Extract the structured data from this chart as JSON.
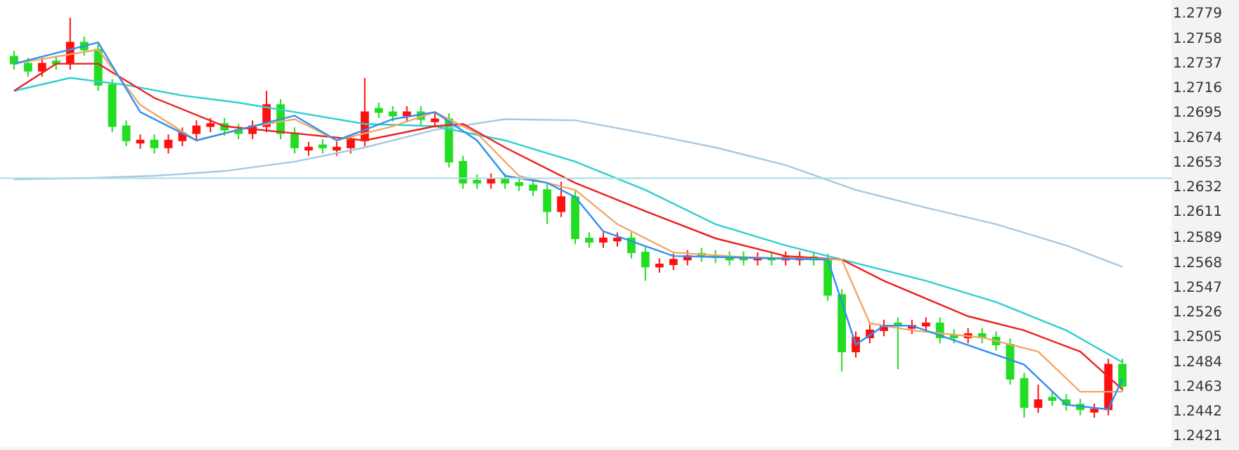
{
  "chart_data": {
    "type": "candlestick",
    "categories": [
      null,
      null,
      null,
      null,
      null,
      null,
      null,
      null,
      null,
      null,
      null,
      null,
      null,
      null,
      null,
      null,
      null,
      null,
      null,
      null,
      null,
      null,
      null,
      null,
      null,
      null,
      null,
      null,
      null,
      null,
      null,
      null,
      null,
      null,
      null,
      null,
      null,
      null,
      null,
      null,
      null,
      null,
      null,
      null,
      null,
      null,
      null,
      null,
      null,
      null,
      null,
      null,
      null,
      null,
      null,
      null,
      null,
      null,
      null,
      null,
      null,
      null,
      null,
      null,
      null,
      null,
      null,
      null,
      null,
      null,
      null,
      null,
      null,
      null,
      null,
      null,
      null,
      null,
      null,
      null
    ],
    "ohlc": [
      [
        1.2742,
        1.2747,
        1.2731,
        1.2736
      ],
      [
        1.2736,
        1.2741,
        1.2725,
        1.273
      ],
      [
        1.273,
        1.2741,
        1.2725,
        1.2736
      ],
      [
        1.2738,
        1.2743,
        1.2731,
        1.2736
      ],
      [
        1.2736,
        1.2775,
        1.2731,
        1.2754
      ],
      [
        1.2754,
        1.2759,
        1.2743,
        1.2748
      ],
      [
        1.2748,
        1.2753,
        1.2713,
        1.2718
      ],
      [
        1.2718,
        1.2723,
        1.2678,
        1.2683
      ],
      [
        1.2683,
        1.2688,
        1.2666,
        1.2671
      ],
      [
        1.2669,
        1.2676,
        1.2664,
        1.2671
      ],
      [
        1.2671,
        1.2676,
        1.266,
        1.2665
      ],
      [
        1.2665,
        1.2676,
        1.266,
        1.2671
      ],
      [
        1.2671,
        1.2682,
        1.2666,
        1.2677
      ],
      [
        1.2677,
        1.2688,
        1.2672,
        1.2683
      ],
      [
        1.2683,
        1.269,
        1.2678,
        1.2685
      ],
      [
        1.2685,
        1.269,
        1.2675,
        1.268
      ],
      [
        1.268,
        1.2685,
        1.2672,
        1.2677
      ],
      [
        1.2677,
        1.2688,
        1.2672,
        1.2683
      ],
      [
        1.2683,
        1.2713,
        1.2678,
        1.2701
      ],
      [
        1.2701,
        1.2706,
        1.2672,
        1.2677
      ],
      [
        1.2677,
        1.2682,
        1.266,
        1.2665
      ],
      [
        1.2663,
        1.267,
        1.2658,
        1.2665
      ],
      [
        1.2667,
        1.2672,
        1.266,
        1.2665
      ],
      [
        1.2663,
        1.267,
        1.2658,
        1.2665
      ],
      [
        1.2665,
        1.2676,
        1.266,
        1.2671
      ],
      [
        1.2671,
        1.2724,
        1.2666,
        1.2695
      ],
      [
        1.2698,
        1.2703,
        1.269,
        1.2695
      ],
      [
        1.2695,
        1.27,
        1.2687,
        1.2692
      ],
      [
        1.2692,
        1.27,
        1.2687,
        1.2695
      ],
      [
        1.2695,
        1.27,
        1.2684,
        1.2689
      ],
      [
        1.2687,
        1.2694,
        1.2682,
        1.2689
      ],
      [
        1.2689,
        1.2694,
        1.2648,
        1.2653
      ],
      [
        1.2653,
        1.2658,
        1.263,
        1.2635
      ],
      [
        1.2637,
        1.2642,
        1.263,
        1.2635
      ],
      [
        1.2635,
        1.2643,
        1.263,
        1.2638
      ],
      [
        1.2638,
        1.2643,
        1.263,
        1.2635
      ],
      [
        1.2635,
        1.264,
        1.2628,
        1.2633
      ],
      [
        1.2633,
        1.2638,
        1.2624,
        1.2629
      ],
      [
        1.2629,
        1.2634,
        1.26,
        1.2611
      ],
      [
        1.2611,
        1.2636,
        1.2606,
        1.2623
      ],
      [
        1.2623,
        1.2628,
        1.2583,
        1.2588
      ],
      [
        1.2588,
        1.2593,
        1.258,
        1.2585
      ],
      [
        1.2585,
        1.2593,
        1.258,
        1.2588
      ],
      [
        1.2586,
        1.2593,
        1.2581,
        1.2588
      ],
      [
        1.2588,
        1.2593,
        1.2571,
        1.2576
      ],
      [
        1.2576,
        1.2581,
        1.2552,
        1.2564
      ],
      [
        1.2564,
        1.2571,
        1.2559,
        1.2566
      ],
      [
        1.2566,
        1.2575,
        1.2561,
        1.257
      ],
      [
        1.257,
        1.2578,
        1.2565,
        1.2573
      ],
      [
        1.2575,
        1.258,
        1.2568,
        1.2573
      ],
      [
        1.2573,
        1.2578,
        1.2567,
        1.2572
      ],
      [
        1.2572,
        1.2577,
        1.2565,
        1.257
      ],
      [
        1.2572,
        1.2577,
        1.2565,
        1.257
      ],
      [
        1.257,
        1.2576,
        1.2565,
        1.2571
      ],
      [
        1.2571,
        1.2576,
        1.2565,
        1.257
      ],
      [
        1.257,
        1.2577,
        1.2565,
        1.2572
      ],
      [
        1.257,
        1.2577,
        1.2565,
        1.2572
      ],
      [
        1.2572,
        1.2577,
        1.2565,
        1.257
      ],
      [
        1.257,
        1.2575,
        1.2535,
        1.254
      ],
      [
        1.254,
        1.2545,
        1.2475,
        1.2492
      ],
      [
        1.2492,
        1.2509,
        1.2487,
        1.2504
      ],
      [
        1.2504,
        1.2515,
        1.2499,
        1.251
      ],
      [
        1.251,
        1.2519,
        1.2505,
        1.2514
      ],
      [
        1.2516,
        1.2521,
        1.2477,
        1.2514
      ],
      [
        1.2512,
        1.2519,
        1.2507,
        1.2514
      ],
      [
        1.2514,
        1.2521,
        1.2509,
        1.2516
      ],
      [
        1.2516,
        1.2521,
        1.2499,
        1.2504
      ],
      [
        1.2506,
        1.2511,
        1.2499,
        1.2504
      ],
      [
        1.2504,
        1.2512,
        1.2499,
        1.2507
      ],
      [
        1.2507,
        1.2512,
        1.2499,
        1.2504
      ],
      [
        1.2504,
        1.2509,
        1.2493,
        1.2498
      ],
      [
        1.2498,
        1.2503,
        1.2464,
        1.2469
      ],
      [
        1.2469,
        1.2474,
        1.2436,
        1.2445
      ],
      [
        1.2445,
        1.2464,
        1.244,
        1.2451
      ],
      [
        1.2453,
        1.2458,
        1.2446,
        1.2451
      ],
      [
        1.2451,
        1.2456,
        1.2442,
        1.2447
      ],
      [
        1.2447,
        1.2452,
        1.2438,
        1.2443
      ],
      [
        1.2441,
        1.2448,
        1.2436,
        1.2443
      ],
      [
        1.2443,
        1.2486,
        1.2438,
        1.2481
      ],
      [
        1.2481,
        1.2486,
        1.2458,
        1.2463
      ]
    ],
    "colors": [
      "#22dd22",
      "#22dd22",
      "#ff1010",
      "#22dd22",
      "#ff1010",
      "#22dd22",
      "#22dd22",
      "#22dd22",
      "#22dd22",
      "#ff1010",
      "#22dd22",
      "#ff1010",
      "#ff1010",
      "#ff1010",
      "#ff1010",
      "#22dd22",
      "#22dd22",
      "#ff1010",
      "#ff1010",
      "#22dd22",
      "#22dd22",
      "#ff1010",
      "#22dd22",
      "#ff1010",
      "#ff1010",
      "#ff1010",
      "#22dd22",
      "#22dd22",
      "#ff1010",
      "#22dd22",
      "#ff1010",
      "#22dd22",
      "#22dd22",
      "#22dd22",
      "#ff1010",
      "#22dd22",
      "#22dd22",
      "#22dd22",
      "#22dd22",
      "#ff1010",
      "#22dd22",
      "#22dd22",
      "#ff1010",
      "#ff1010",
      "#22dd22",
      "#22dd22",
      "#ff1010",
      "#ff1010",
      "#ff1010",
      "#22dd22",
      "#22dd22",
      "#22dd22",
      "#22dd22",
      "#ff1010",
      "#22dd22",
      "#ff1010",
      "#ff1010",
      "#22dd22",
      "#22dd22",
      "#22dd22",
      "#ff1010",
      "#ff1010",
      "#ff1010",
      "#22dd22",
      "#ff1010",
      "#ff1010",
      "#22dd22",
      "#22dd22",
      "#ff1010",
      "#22dd22",
      "#22dd22",
      "#22dd22",
      "#22dd22",
      "#ff1010",
      "#22dd22",
      "#22dd22",
      "#22dd22",
      "#ff1010",
      "#ff1010",
      "#22dd22"
    ],
    "series": [
      {
        "type": "line",
        "color": "#a8c8e0",
        "values": [
          1.2638,
          null,
          null,
          null,
          null,
          1.2639,
          null,
          null,
          null,
          null,
          1.2641,
          null,
          null,
          null,
          null,
          1.2645,
          null,
          null,
          null,
          null,
          1.2653,
          null,
          null,
          null,
          null,
          1.2665,
          null,
          null,
          null,
          null,
          1.268,
          null,
          null,
          null,
          null,
          1.2689,
          null,
          null,
          null,
          null,
          1.2688,
          null,
          null,
          null,
          null,
          1.2677,
          null,
          null,
          null,
          null,
          1.2665,
          null,
          null,
          null,
          null,
          1.265,
          null,
          null,
          null,
          null,
          1.2629,
          null,
          null,
          null,
          null,
          1.2614,
          null,
          null,
          null,
          null,
          1.26,
          null,
          null,
          null,
          null,
          1.2582,
          null,
          null,
          null,
          1.2564
        ]
      },
      {
        "type": "line",
        "color": "#2fcfd0",
        "values": [
          1.2713,
          null,
          null,
          null,
          1.2724,
          null,
          null,
          null,
          1.2718,
          null,
          null,
          null,
          1.2709,
          null,
          null,
          null,
          1.2703,
          null,
          null,
          null,
          1.2695,
          null,
          null,
          null,
          null,
          1.2685,
          null,
          null,
          null,
          null,
          1.2683,
          null,
          null,
          null,
          null,
          1.2671,
          null,
          null,
          null,
          null,
          1.2653,
          null,
          null,
          null,
          null,
          1.2629,
          null,
          null,
          null,
          null,
          1.26,
          null,
          null,
          null,
          null,
          1.2582,
          null,
          null,
          null,
          1.257,
          null,
          null,
          null,
          null,
          null,
          1.2552,
          null,
          null,
          null,
          null,
          1.2534,
          null,
          null,
          null,
          null,
          1.251,
          null,
          null,
          null,
          1.2483
        ]
      },
      {
        "type": "line",
        "color": "#ee2020",
        "values": [
          1.2713,
          null,
          null,
          1.2736,
          null,
          null,
          1.2736,
          null,
          null,
          null,
          1.2707,
          null,
          null,
          null,
          null,
          1.2683,
          null,
          null,
          null,
          null,
          1.2677,
          null,
          null,
          null,
          null,
          1.2671,
          null,
          null,
          null,
          null,
          1.2683,
          null,
          1.2685,
          null,
          null,
          1.2665,
          null,
          null,
          null,
          null,
          1.2635,
          null,
          null,
          null,
          null,
          1.2611,
          null,
          null,
          null,
          null,
          1.2588,
          null,
          null,
          null,
          null,
          1.2573,
          null,
          null,
          null,
          1.257,
          null,
          null,
          1.2552,
          null,
          null,
          null,
          null,
          null,
          1.2522,
          null,
          null,
          null,
          1.251,
          null,
          null,
          null,
          1.2492,
          null,
          null,
          1.246
        ]
      },
      {
        "type": "line",
        "color": "#f0a868",
        "values": [
          1.2736,
          null,
          null,
          null,
          null,
          null,
          1.2748,
          null,
          null,
          1.2701,
          null,
          null,
          null,
          1.2671,
          null,
          null,
          null,
          1.2683,
          null,
          null,
          1.2689,
          null,
          null,
          1.2671,
          null,
          null,
          null,
          1.2683,
          null,
          null,
          1.2695,
          null,
          null,
          1.2677,
          null,
          null,
          1.2641,
          null,
          null,
          null,
          1.2629,
          null,
          null,
          1.26,
          null,
          null,
          null,
          1.2576,
          null,
          null,
          null,
          null,
          1.2572,
          null,
          null,
          null,
          null,
          null,
          null,
          1.257,
          null,
          1.2516,
          null,
          null,
          1.251,
          null,
          null,
          null,
          null,
          1.2504,
          null,
          null,
          null,
          1.2492,
          null,
          null,
          1.2458,
          null,
          null,
          1.2458
        ]
      },
      {
        "type": "line",
        "color": "#3090f0",
        "values": [
          1.2736,
          null,
          null,
          null,
          null,
          null,
          1.2754,
          null,
          null,
          1.2695,
          null,
          null,
          null,
          1.2671,
          null,
          null,
          null,
          1.2683,
          null,
          null,
          1.2692,
          null,
          null,
          1.2671,
          null,
          null,
          null,
          1.2689,
          null,
          null,
          1.2695,
          null,
          null,
          1.2671,
          null,
          1.2641,
          null,
          null,
          1.2635,
          null,
          1.2623,
          null,
          1.2594,
          null,
          null,
          null,
          null,
          1.2573,
          null,
          null,
          null,
          null,
          null,
          null,
          null,
          null,
          null,
          null,
          1.257,
          null,
          1.2498,
          null,
          1.2514,
          null,
          1.2514,
          null,
          null,
          null,
          null,
          null,
          null,
          null,
          1.2481,
          null,
          null,
          1.2447,
          null,
          null,
          1.2443,
          1.2469
        ]
      }
    ],
    "ylim": [
      1.2411,
      1.279
    ],
    "yticks": [
      1.2779,
      1.2758,
      1.2737,
      1.2716,
      1.2695,
      1.2674,
      1.2653,
      1.2632,
      1.2611,
      1.2589,
      1.2568,
      1.2547,
      1.2526,
      1.2505,
      1.2484,
      1.2463,
      1.2442,
      1.2421
    ],
    "ref_lines": [
      {
        "axis": "y",
        "value": 1.2639,
        "color": "#a8dce4"
      }
    ],
    "tick_labels": "y"
  }
}
